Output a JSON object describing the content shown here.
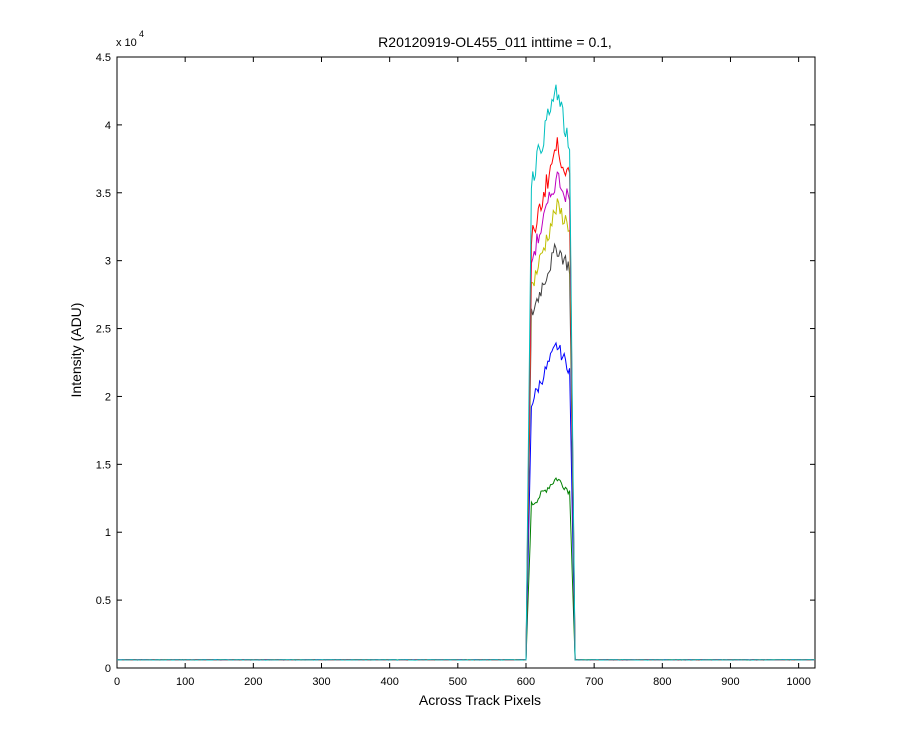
{
  "chart_data": {
    "type": "line",
    "title": "R20120919-OL455_011 inttime = 0.1,",
    "xlabel": "Across Track Pixels",
    "ylabel": "Intensity (ADU)",
    "y_exponent_label": "x 10",
    "y_exponent_power": "4",
    "xlim": [
      0,
      1024
    ],
    "ylim": [
      0,
      45000
    ],
    "xticks": [
      0,
      100,
      200,
      300,
      400,
      500,
      600,
      700,
      800,
      900,
      1000
    ],
    "yticks": [
      0,
      5000,
      10000,
      15000,
      20000,
      25000,
      30000,
      35000,
      40000,
      45000
    ],
    "ytick_labels": [
      "0",
      "0.5",
      "1",
      "1.5",
      "2",
      "2.5",
      "3",
      "3.5",
      "4",
      "4.5"
    ],
    "xtick_labels": [
      "0",
      "100",
      "200",
      "300",
      "400",
      "500",
      "600",
      "700",
      "800",
      "900",
      "1000"
    ],
    "grid": false,
    "legend": "none",
    "profile": {
      "baseline": 600,
      "edge_start": 600,
      "rise_end": 608,
      "fall_start": 664,
      "edge_end": 672,
      "peak_x": 645
    },
    "series": [
      {
        "color": "#008000",
        "rise": 12000,
        "peak": 14000,
        "right": 13000
      },
      {
        "color": "#0000ff",
        "rise": 19500,
        "peak": 23800,
        "right": 22000
      },
      {
        "color": "#404040",
        "rise": 26000,
        "peak": 31000,
        "right": 29500
      },
      {
        "color": "#bfbf00",
        "rise": 28000,
        "peak": 34000,
        "right": 32500
      },
      {
        "color": "#bf00bf",
        "rise": 30000,
        "peak": 36200,
        "right": 34500
      },
      {
        "color": "#ff0000",
        "rise": 31500,
        "peak": 38500,
        "right": 36000
      },
      {
        "color": "#00bfbf",
        "rise": 36000,
        "peak": 42700,
        "right": 38000
      }
    ]
  }
}
